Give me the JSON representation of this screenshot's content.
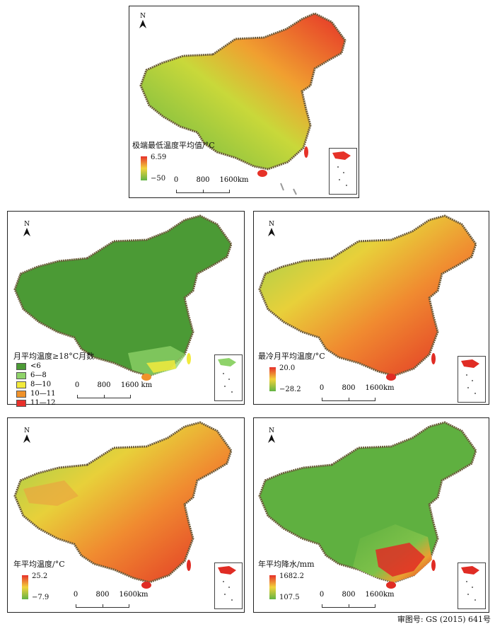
{
  "north_label": "N",
  "scale": {
    "ticks": [
      "0",
      "800",
      "1600km"
    ],
    "ticks_alt": [
      "0",
      "800",
      "1600 km"
    ]
  },
  "panels": {
    "extreme_min": {
      "title": "极端最低温度平均值/°C",
      "legend_max": "6.59",
      "legend_min": "−50",
      "colors": {
        "high": "#e8302a",
        "mid": "#f2d23a",
        "low": "#6ab845"
      }
    },
    "months_above_18": {
      "title": "月平均温度≥18°C月数",
      "classes": [
        {
          "label": "<6",
          "color": "#4b9a35"
        },
        {
          "label": "6—8",
          "color": "#8fd36a"
        },
        {
          "label": "8—10",
          "color": "#f2ea3c"
        },
        {
          "label": "10—11",
          "color": "#f0922a"
        },
        {
          "label": "11—12",
          "color": "#e8302a"
        }
      ]
    },
    "coldest_month": {
      "title": "最冷月平均温度/°C",
      "legend_max": "20.0",
      "legend_min": "−28.2"
    },
    "annual_temp": {
      "title": "年平均温度/°C",
      "legend_max": "25.2",
      "legend_min": "−7.9"
    },
    "annual_precip": {
      "title": "年平均降水/mm",
      "legend_max": "1682.2",
      "legend_min": "107.5"
    }
  },
  "footer": "审图号: GS (2015) 641号"
}
